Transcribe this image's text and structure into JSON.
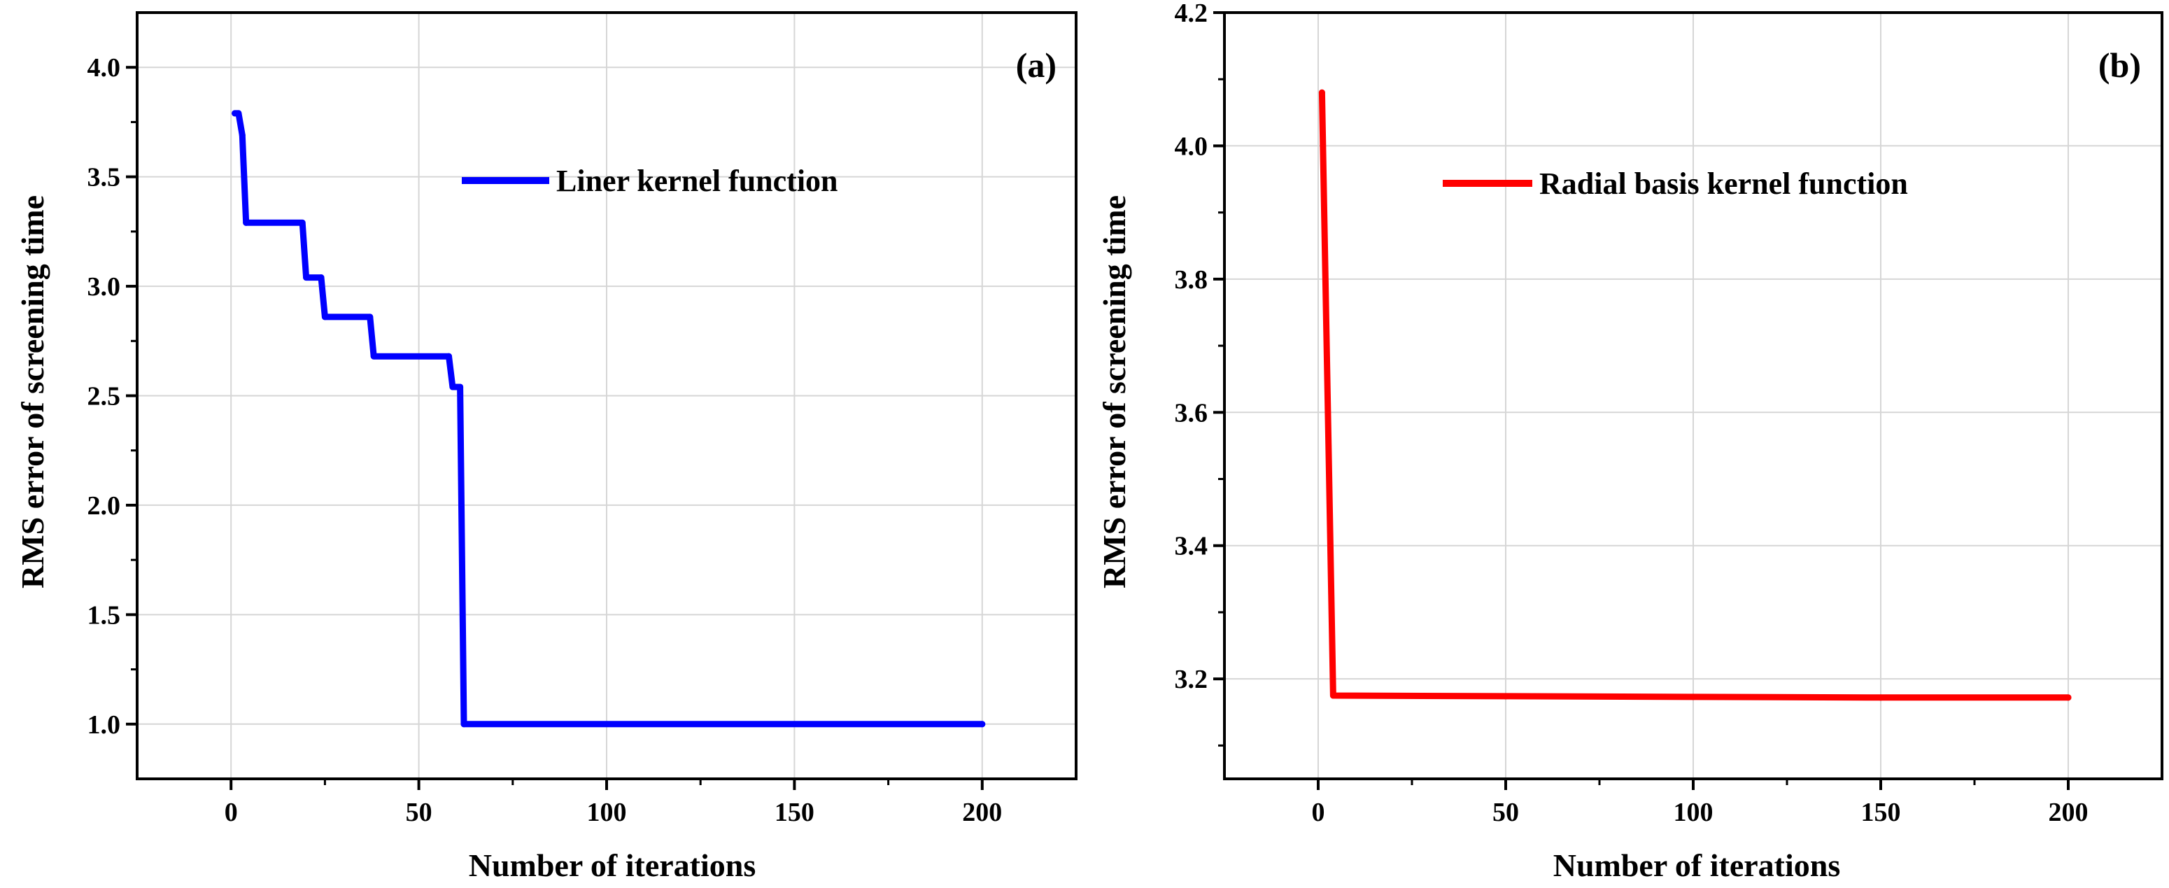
{
  "chart_data": [
    {
      "type": "line",
      "panel_label": "(a)",
      "xlabel": "Number of iterations",
      "ylabel": "RMS error of screening time",
      "xlim": [
        -25,
        225
      ],
      "ylim": [
        0.75,
        4.25
      ],
      "xticks": [
        0,
        50,
        100,
        150,
        200
      ],
      "yticks": [
        1.0,
        1.5,
        2.0,
        2.5,
        3.0,
        3.5,
        4.0
      ],
      "xtick_labels": [
        "0",
        "50",
        "100",
        "150",
        "200"
      ],
      "ytick_labels": [
        "1.0",
        "1.5",
        "2.0",
        "2.5",
        "3.0",
        "3.5",
        "4.0"
      ],
      "grid": true,
      "legend_position": "top-right",
      "series": [
        {
          "name": "Liner kernel function",
          "color": "#0000ff",
          "x": [
            1,
            2,
            3,
            4,
            19,
            20,
            24,
            25,
            37,
            38,
            58,
            59,
            61,
            62,
            200
          ],
          "y": [
            3.79,
            3.79,
            3.69,
            3.29,
            3.29,
            3.04,
            3.04,
            2.86,
            2.86,
            2.68,
            2.68,
            2.54,
            2.54,
            1.0,
            1.0
          ]
        }
      ]
    },
    {
      "type": "line",
      "panel_label": "(b)",
      "xlabel": "Number of iterations",
      "ylabel": "RMS error of screening time",
      "xlim": [
        -25,
        225
      ],
      "ylim": [
        3.05,
        4.2
      ],
      "xticks": [
        0,
        50,
        100,
        150,
        200
      ],
      "yticks": [
        3.2,
        3.4,
        3.6,
        3.8,
        4.0,
        4.2
      ],
      "xtick_labels": [
        "0",
        "50",
        "100",
        "150",
        "200"
      ],
      "ytick_labels": [
        "3.2",
        "3.4",
        "3.6",
        "3.8",
        "4.0",
        "4.2"
      ],
      "grid": true,
      "legend_position": "top-right",
      "series": [
        {
          "name": "Radial basis kernel function",
          "color": "#ff0000",
          "x": [
            1,
            4,
            50,
            100,
            150,
            200
          ],
          "y": [
            4.08,
            3.175,
            3.174,
            3.173,
            3.172,
            3.172
          ]
        }
      ]
    }
  ]
}
